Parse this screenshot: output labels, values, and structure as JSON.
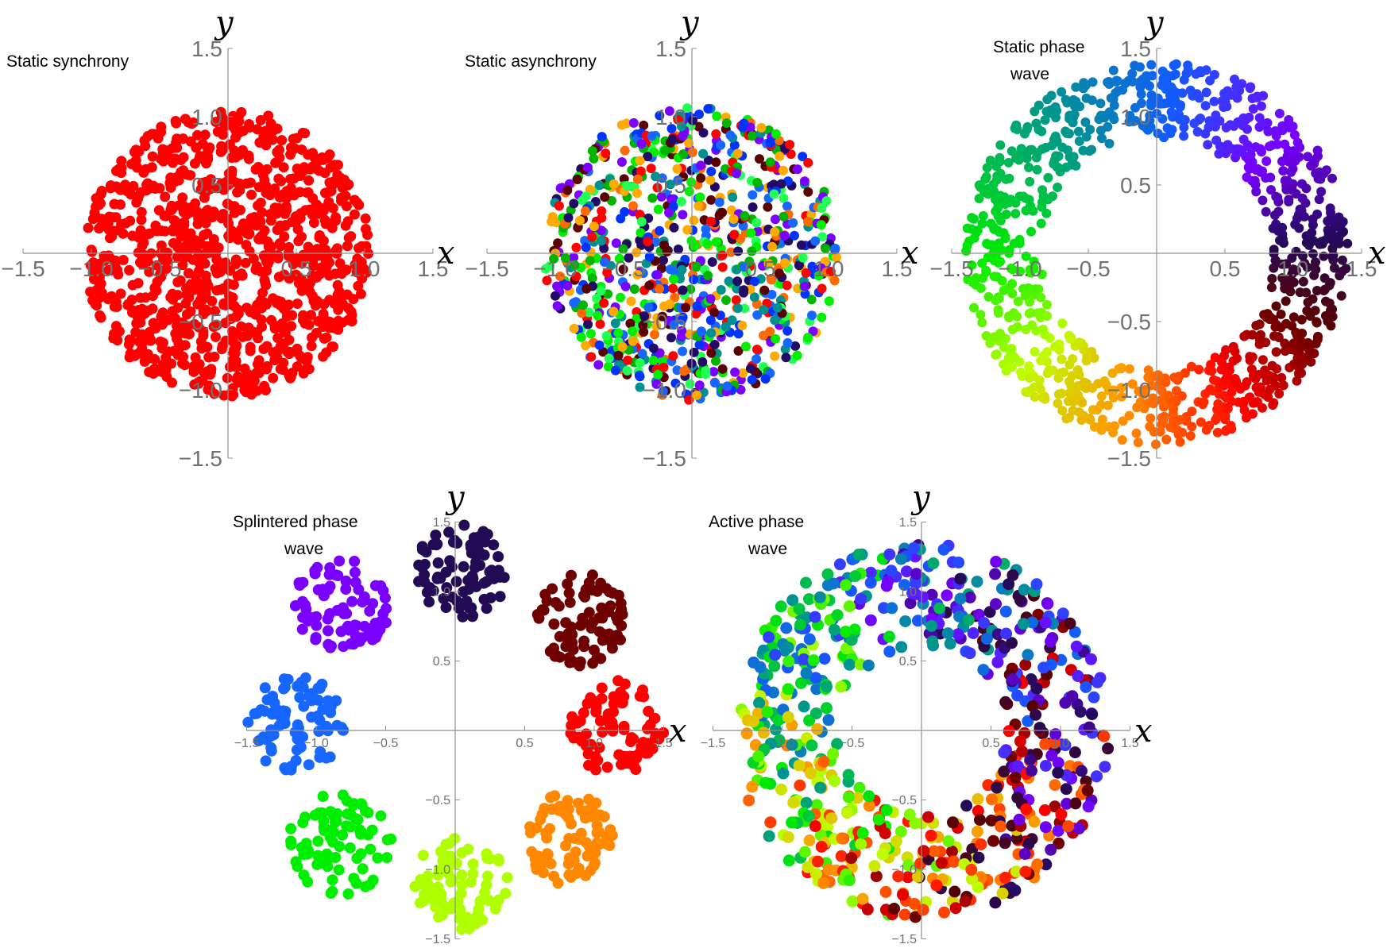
{
  "figure": {
    "axis_label_x": "x",
    "axis_label_y": "y"
  },
  "chart_data": [
    {
      "type": "scatter",
      "title_lines": [
        "Static synchrony"
      ],
      "xlabel": "x",
      "ylabel": "y",
      "xlim": [
        -1.5,
        1.5
      ],
      "ylim": [
        -1.5,
        1.5
      ],
      "xticks": [
        -1.5,
        -1.0,
        -0.5,
        0.5,
        1.0,
        1.5
      ],
      "yticks": [
        -1.5,
        -1.0,
        -0.5,
        0.5,
        1.0,
        1.5
      ],
      "tick_labels_x": [
        "−1.5",
        "−1.0",
        "−0.5",
        "0.5",
        "1.0",
        "1.5"
      ],
      "tick_labels_y": [
        "−1.5",
        "−1.0",
        "−0.5",
        "0.5",
        "1.0",
        "1.5"
      ],
      "pattern": "disk",
      "disk_radius": 1.05,
      "color_mode": "uniform",
      "color": "#ff0000",
      "point_count": 1000
    },
    {
      "type": "scatter",
      "title_lines": [
        "Static asynchrony"
      ],
      "xlabel": "x",
      "ylabel": "y",
      "xlim": [
        -1.5,
        1.5
      ],
      "ylim": [
        -1.5,
        1.5
      ],
      "xticks": [
        -1.5,
        -1.0,
        -0.5,
        0.5,
        1.0,
        1.5
      ],
      "yticks": [
        -1.5,
        -1.0,
        -0.5,
        0.5,
        1.0,
        1.5
      ],
      "tick_labels_x": [
        "−1.5",
        "−1.0",
        "−0.5",
        "0.5",
        "1.0",
        "1.5"
      ],
      "tick_labels_y": [
        "−1.5",
        "−1.0",
        "−0.5",
        "0.5",
        "1.0",
        "1.5"
      ],
      "pattern": "disk",
      "disk_radius": 1.08,
      "color_mode": "random_phase",
      "point_count": 900
    },
    {
      "type": "scatter",
      "title_lines": [
        "Static phase",
        "wave"
      ],
      "xlabel": "x",
      "ylabel": "y",
      "xlim": [
        -1.5,
        1.5
      ],
      "ylim": [
        -1.5,
        1.5
      ],
      "xticks": [
        -1.5,
        -1.0,
        -0.5,
        0.5,
        1.0,
        1.5
      ],
      "yticks": [
        -1.5,
        -1.0,
        -0.5,
        0.5,
        1.0,
        1.5
      ],
      "tick_labels_x": [
        "−1.5",
        "−1.0",
        "−0.5",
        "0.5",
        "1.0",
        "1.5"
      ],
      "tick_labels_y": [
        "−1.5",
        "−1.0",
        "−0.5",
        "0.5",
        "1.0",
        "1.5"
      ],
      "pattern": "annulus",
      "inner_radius": 0.85,
      "outer_radius": 1.4,
      "color_mode": "angle_phase",
      "point_count": 1000
    },
    {
      "type": "scatter",
      "title_lines": [
        "Splintered phase",
        "wave"
      ],
      "xlabel": "x",
      "ylabel": "y",
      "xlim": [
        -1.5,
        1.5
      ],
      "ylim": [
        -1.5,
        1.5
      ],
      "xticks": [
        -1.5,
        -1.0,
        -0.5,
        0.5,
        1.0,
        1.5
      ],
      "yticks": [
        -1.5,
        -1.0,
        -0.5,
        0.5,
        1.0,
        1.5
      ],
      "tick_labels_x": [
        "−1.5",
        "−1.0",
        "−0.5",
        "0.5",
        "1.0",
        "1.5"
      ],
      "tick_labels_y": [
        "−1.5",
        "−1.0",
        "−0.5",
        "0.5",
        "1.0",
        "1.5"
      ],
      "pattern": "clusters",
      "clusters": [
        {
          "cx": 0.05,
          "cy": 1.15,
          "r": 0.34,
          "color": "#220a55"
        },
        {
          "cx": 0.92,
          "cy": 0.79,
          "r": 0.34,
          "color": "#6e0000"
        },
        {
          "cx": 1.16,
          "cy": 0.02,
          "r": 0.34,
          "color": "#ff0000"
        },
        {
          "cx": 0.82,
          "cy": -0.78,
          "r": 0.33,
          "color": "#ff8800"
        },
        {
          "cx": 0.04,
          "cy": -1.1,
          "r": 0.34,
          "color": "#b0ff00"
        },
        {
          "cx": -0.82,
          "cy": -0.82,
          "r": 0.38,
          "color": "#00ee00"
        },
        {
          "cx": -1.15,
          "cy": 0.05,
          "r": 0.35,
          "color": "#1666ff"
        },
        {
          "cx": -0.82,
          "cy": 0.9,
          "r": 0.35,
          "color": "#7a00ff"
        }
      ],
      "point_count": 640
    },
    {
      "type": "scatter",
      "title_lines": [
        "Active phase",
        "wave"
      ],
      "xlabel": "x",
      "ylabel": "y",
      "xlim": [
        -1.5,
        1.5
      ],
      "ylim": [
        -1.5,
        1.5
      ],
      "xticks": [
        -1.5,
        -1.0,
        -0.5,
        0.5,
        1.0,
        1.5
      ],
      "yticks": [
        -1.5,
        -1.0,
        -0.5,
        0.5,
        1.0,
        1.5
      ],
      "tick_labels_x": [
        "−1.5",
        "−1.0",
        "−0.5",
        "0.5",
        "1.0",
        "1.5"
      ],
      "tick_labels_y": [
        "−1.5",
        "−1.0",
        "−0.5",
        "0.5",
        "1.0",
        "1.5"
      ],
      "pattern": "annulus",
      "inner_radius": 0.6,
      "outer_radius": 1.35,
      "color_mode": "noisy_angle_phase",
      "point_count": 700
    }
  ]
}
